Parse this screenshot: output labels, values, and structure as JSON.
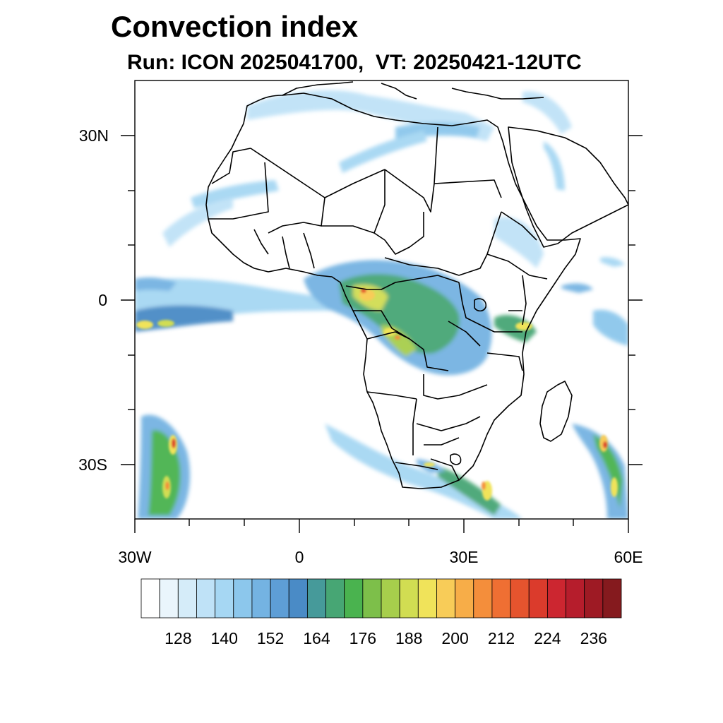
{
  "title": "Convection index",
  "subtitle": "Run: ICON 2025041700,  VT: 20250421-12UTC",
  "lat_labels": [
    "30N",
    "0",
    "30S"
  ],
  "lon_labels": [
    "30W",
    "0",
    "30E",
    "60E"
  ],
  "colorbar": {
    "colors": [
      "#ffffff",
      "#eaf5fc",
      "#d5ecf9",
      "#bfe2f7",
      "#a6d7f3",
      "#8cc7ec",
      "#74b3e2",
      "#5e9ed6",
      "#4a8bc6",
      "#469a9a",
      "#47a674",
      "#4ab34f",
      "#7dbf4a",
      "#a7ce4c",
      "#d1dd52",
      "#f0e35a",
      "#f8cc58",
      "#f7ad48",
      "#f48e3b",
      "#ef6f33",
      "#e5542e",
      "#db3b2c",
      "#cc2630",
      "#b61d2c",
      "#9e1a24",
      "#851a1e"
    ],
    "labels": [
      "128",
      "140",
      "152",
      "164",
      "176",
      "188",
      "200",
      "212",
      "224",
      "236"
    ]
  }
}
